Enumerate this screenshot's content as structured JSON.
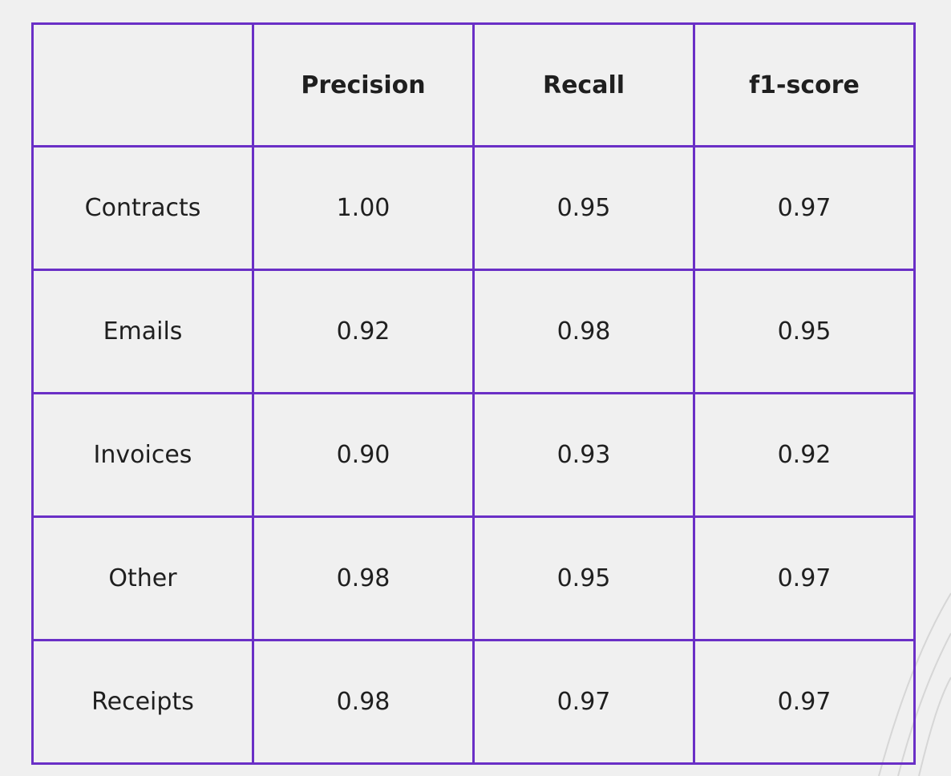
{
  "chart_data": {
    "type": "table",
    "columns": [
      "",
      "Precision",
      "Recall",
      "f1-score"
    ],
    "rows": [
      {
        "label": "Contracts",
        "values": [
          "1.00",
          "0.95",
          "0.97"
        ]
      },
      {
        "label": "Emails",
        "values": [
          "0.92",
          "0.98",
          "0.95"
        ]
      },
      {
        "label": "Invoices",
        "values": [
          "0.90",
          "0.93",
          "0.92"
        ]
      },
      {
        "label": "Other",
        "values": [
          "0.98",
          "0.95",
          "0.97"
        ]
      },
      {
        "label": "Receipts",
        "values": [
          "0.98",
          "0.97",
          "0.97"
        ]
      }
    ]
  },
  "colors": {
    "border": "#6a2fc6",
    "background": "#f0f0f0",
    "text": "#1f1f1f"
  }
}
